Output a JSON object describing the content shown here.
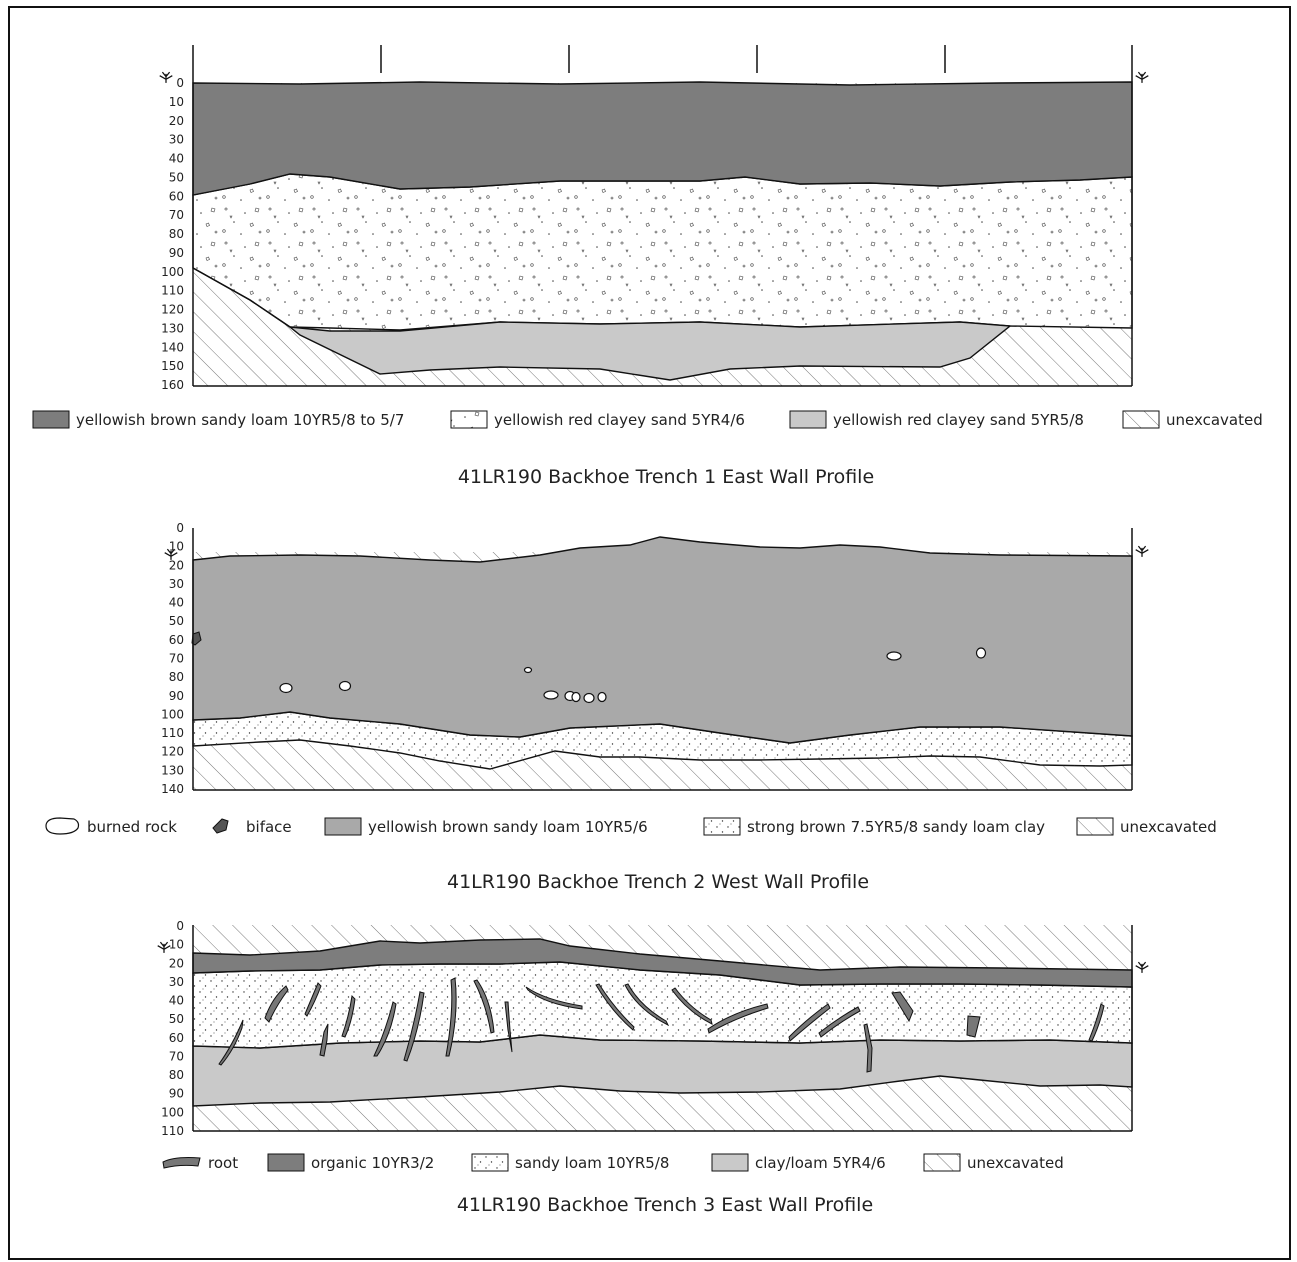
{
  "colors": {
    "dark": "#7d7d7d",
    "medium": "#a9a9a9",
    "light": "#c9c9c9",
    "line": "#1a1a1a",
    "hatch": "#555555"
  },
  "panels": [
    {
      "title": "41LR190 Backhoe Trench 1 East Wall Profile",
      "depth_labels": [
        "0",
        "10",
        "20",
        "30",
        "40",
        "50",
        "60",
        "70",
        "80",
        "90",
        "100",
        "110",
        "120",
        "130",
        "140",
        "150",
        "160"
      ],
      "legend": [
        {
          "swatch": "dark",
          "label": "yellowish brown sandy loam 10YR5/8 to 5/7"
        },
        {
          "swatch": "gravel",
          "label": "yellowish red clayey sand 5YR4/6"
        },
        {
          "swatch": "light",
          "label": "yellowish red clayey sand 5YR5/8"
        },
        {
          "swatch": "hatch",
          "label": "unexcavated"
        }
      ]
    },
    {
      "title": "41LR190 Backhoe Trench 2 West Wall Profile",
      "depth_labels": [
        "0",
        "10",
        "20",
        "30",
        "40",
        "50",
        "60",
        "70",
        "80",
        "90",
        "100",
        "110",
        "120",
        "130",
        "140"
      ],
      "legend": [
        {
          "swatch": "rock",
          "label": "burned rock"
        },
        {
          "swatch": "biface",
          "label": "biface"
        },
        {
          "swatch": "medium",
          "label": "yellowish brown sandy loam 10YR5/6"
        },
        {
          "swatch": "dots",
          "label": "strong brown 7.5YR5/8 sandy loam clay"
        },
        {
          "swatch": "hatch",
          "label": "unexcavated"
        }
      ]
    },
    {
      "title": "41LR190 Backhoe Trench 3 East Wall Profile",
      "depth_labels": [
        "0",
        "10",
        "20",
        "30",
        "40",
        "50",
        "60",
        "70",
        "80",
        "90",
        "100",
        "110"
      ],
      "legend": [
        {
          "swatch": "root",
          "label": "root"
        },
        {
          "swatch": "dark",
          "label": "organic 10YR3/2"
        },
        {
          "swatch": "dots",
          "label": "sandy loam 10YR5/8"
        },
        {
          "swatch": "light",
          "label": "clay/loam 5YR4/6"
        },
        {
          "swatch": "hatch",
          "label": "unexcavated"
        }
      ]
    }
  ]
}
